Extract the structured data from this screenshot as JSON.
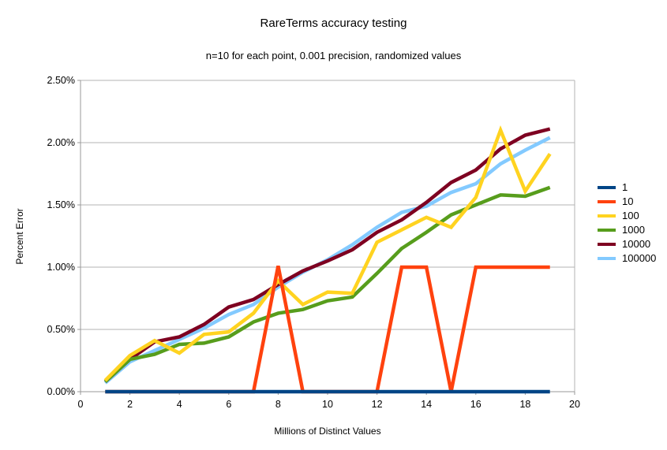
{
  "chart_data": {
    "type": "line",
    "title": "RareTerms accuracy testing",
    "subtitle": "n=10 for each point, 0.001 precision, randomized values",
    "xlabel": "Millions of Distinct Values",
    "ylabel": "Percent Error",
    "xlim": [
      0,
      20
    ],
    "ylim": [
      0,
      2.5
    ],
    "grid": "horizontal",
    "legend_position": "right",
    "x_ticks": [
      0,
      2,
      4,
      6,
      8,
      10,
      12,
      14,
      16,
      18,
      20
    ],
    "y_ticks": [
      {
        "v": 0.0,
        "label": "0.00%"
      },
      {
        "v": 0.5,
        "label": "0.50%"
      },
      {
        "v": 1.0,
        "label": "1.00%"
      },
      {
        "v": 1.5,
        "label": "1.50%"
      },
      {
        "v": 2.0,
        "label": "2.00%"
      },
      {
        "v": 2.5,
        "label": "2.50%"
      }
    ],
    "x": [
      1,
      2,
      3,
      4,
      5,
      6,
      7,
      8,
      9,
      10,
      11,
      12,
      13,
      14,
      15,
      16,
      17,
      18,
      19
    ],
    "series": [
      {
        "name": "1",
        "color": "#004586",
        "values": [
          0,
          0,
          0,
          0,
          0,
          0,
          0,
          0,
          0,
          0,
          0,
          0,
          0,
          0,
          0,
          0,
          0,
          0,
          0
        ]
      },
      {
        "name": "10",
        "color": "#ff420e",
        "values": [
          0,
          0,
          0,
          0,
          0,
          0,
          0,
          1.01,
          0,
          0,
          0,
          0,
          1.0,
          1.0,
          0,
          1.0,
          1.0,
          1.0,
          1.0
        ]
      },
      {
        "name": "100",
        "color": "#ffd320",
        "values": [
          0.09,
          0.29,
          0.41,
          0.31,
          0.46,
          0.48,
          0.63,
          0.89,
          0.7,
          0.8,
          0.79,
          1.2,
          1.3,
          1.4,
          1.32,
          1.56,
          2.1,
          1.61,
          1.91
        ]
      },
      {
        "name": "1000",
        "color": "#579d1c",
        "values": [
          0.08,
          0.26,
          0.3,
          0.38,
          0.39,
          0.44,
          0.56,
          0.63,
          0.66,
          0.73,
          0.76,
          0.95,
          1.15,
          1.28,
          1.42,
          1.5,
          1.58,
          1.57,
          1.64
        ]
      },
      {
        "name": "10000",
        "color": "#7e0021",
        "values": [
          0.08,
          0.26,
          0.4,
          0.44,
          0.54,
          0.68,
          0.74,
          0.86,
          0.97,
          1.05,
          1.14,
          1.28,
          1.38,
          1.52,
          1.68,
          1.78,
          1.95,
          2.06,
          2.11
        ]
      },
      {
        "name": "100000",
        "color": "#83caff",
        "values": [
          0.07,
          0.24,
          0.33,
          0.42,
          0.51,
          0.62,
          0.7,
          0.84,
          0.96,
          1.06,
          1.18,
          1.32,
          1.44,
          1.49,
          1.6,
          1.67,
          1.83,
          1.94,
          2.04
        ]
      }
    ]
  },
  "style_colors": {
    "gridline": "#b3b3b3",
    "axis": "#999999",
    "text": "#000000",
    "background": "#ffffff"
  }
}
